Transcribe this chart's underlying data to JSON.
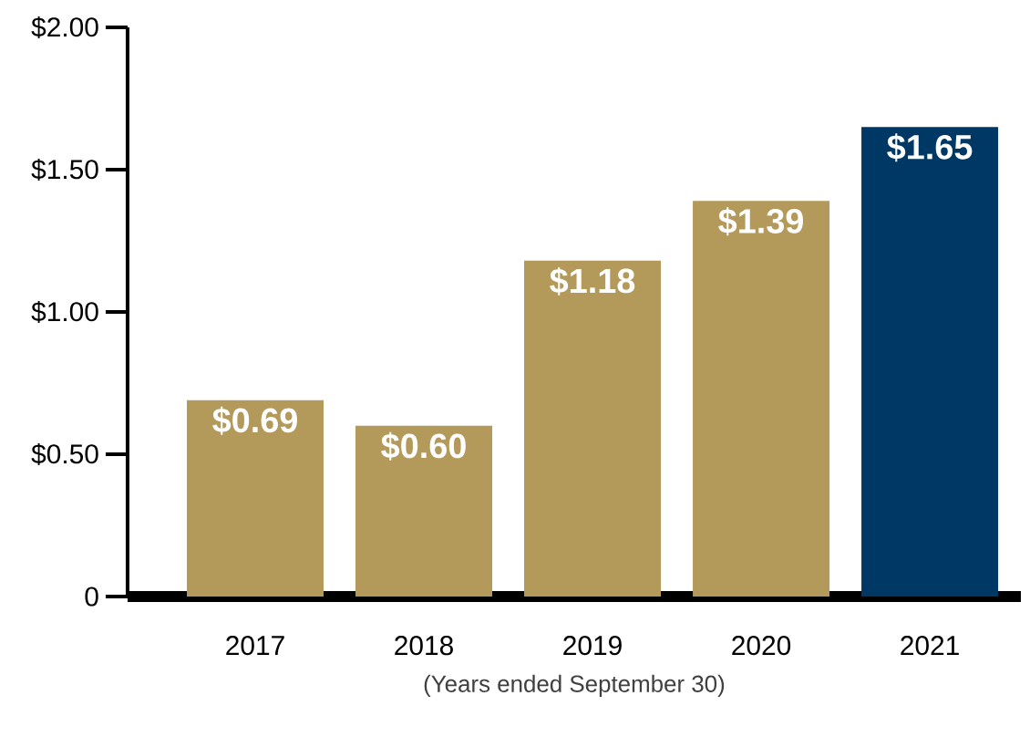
{
  "chart_data": {
    "type": "bar",
    "categories": [
      "2017",
      "2018",
      "2019",
      "2020",
      "2021"
    ],
    "values": [
      0.69,
      0.6,
      1.18,
      1.39,
      1.65
    ],
    "colors": [
      "#b39a5b",
      "#b39a5b",
      "#b39a5b",
      "#b39a5b",
      "#003865"
    ],
    "value_labels": [
      "$0.69",
      "$0.60",
      "$1.18",
      "$1.39",
      "$1.65"
    ],
    "ylim": [
      0,
      2
    ],
    "yticks": [
      {
        "value": 0,
        "label": "0"
      },
      {
        "value": 0.5,
        "label": "$0.50"
      },
      {
        "value": 1,
        "label": "$1.00"
      },
      {
        "value": 1.5,
        "label": "$1.50"
      },
      {
        "value": 2,
        "label": "$2.00"
      }
    ],
    "xlabel": "(Years ended September 30)",
    "grid": false
  }
}
